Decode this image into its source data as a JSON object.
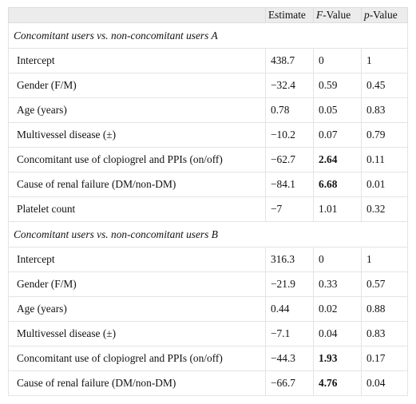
{
  "header": {
    "col1": "",
    "estimate": "Estimate",
    "f_italic": "F",
    "f_rest": "-Value",
    "p_italic": "p",
    "p_rest": "-Value"
  },
  "sections": [
    {
      "title": "Concomitant users vs. non-concomitant users A",
      "rows": [
        {
          "label": "Intercept",
          "estimate": "438.7",
          "f": "0",
          "p": "1",
          "f_bold": false
        },
        {
          "label": "Gender (F/M)",
          "estimate": "−32.4",
          "f": "0.59",
          "p": "0.45",
          "f_bold": false
        },
        {
          "label": "Age (years)",
          "estimate": "0.78",
          "f": "0.05",
          "p": "0.83",
          "f_bold": false
        },
        {
          "label": "Multivessel disease (±)",
          "estimate": "−10.2",
          "f": "0.07",
          "p": "0.79",
          "f_bold": false
        },
        {
          "label": "Concomitant use of clopiogrel and PPIs (on/off)",
          "estimate": "−62.7",
          "f": "2.64",
          "p": "0.11",
          "f_bold": true
        },
        {
          "label": "Cause of renal failure (DM/non-DM)",
          "estimate": "−84.1",
          "f": "6.68",
          "p": "0.01",
          "f_bold": true
        },
        {
          "label": "Platelet count",
          "estimate": "−7",
          "f": "1.01",
          "p": "0.32",
          "f_bold": false
        }
      ]
    },
    {
      "title": "Concomitant users vs. non-concomitant users B",
      "rows": [
        {
          "label": "Intercept",
          "estimate": "316.3",
          "f": "0",
          "p": "1",
          "f_bold": false
        },
        {
          "label": "Gender (F/M)",
          "estimate": "−21.9",
          "f": "0.33",
          "p": "0.57",
          "f_bold": false
        },
        {
          "label": "Age (years)",
          "estimate": "0.44",
          "f": "0.02",
          "p": "0.88",
          "f_bold": false
        },
        {
          "label": "Multivessel disease (±)",
          "estimate": "−7.1",
          "f": "0.04",
          "p": "0.83",
          "f_bold": false
        },
        {
          "label": "Concomitant use of clopiogrel and PPIs (on/off)",
          "estimate": "−44.3",
          "f": "1.93",
          "p": "0.17",
          "f_bold": true
        },
        {
          "label": "Cause of renal failure (DM/non-DM)",
          "estimate": "−66.7",
          "f": "4.76",
          "p": "0.04",
          "f_bold": true
        }
      ]
    }
  ]
}
